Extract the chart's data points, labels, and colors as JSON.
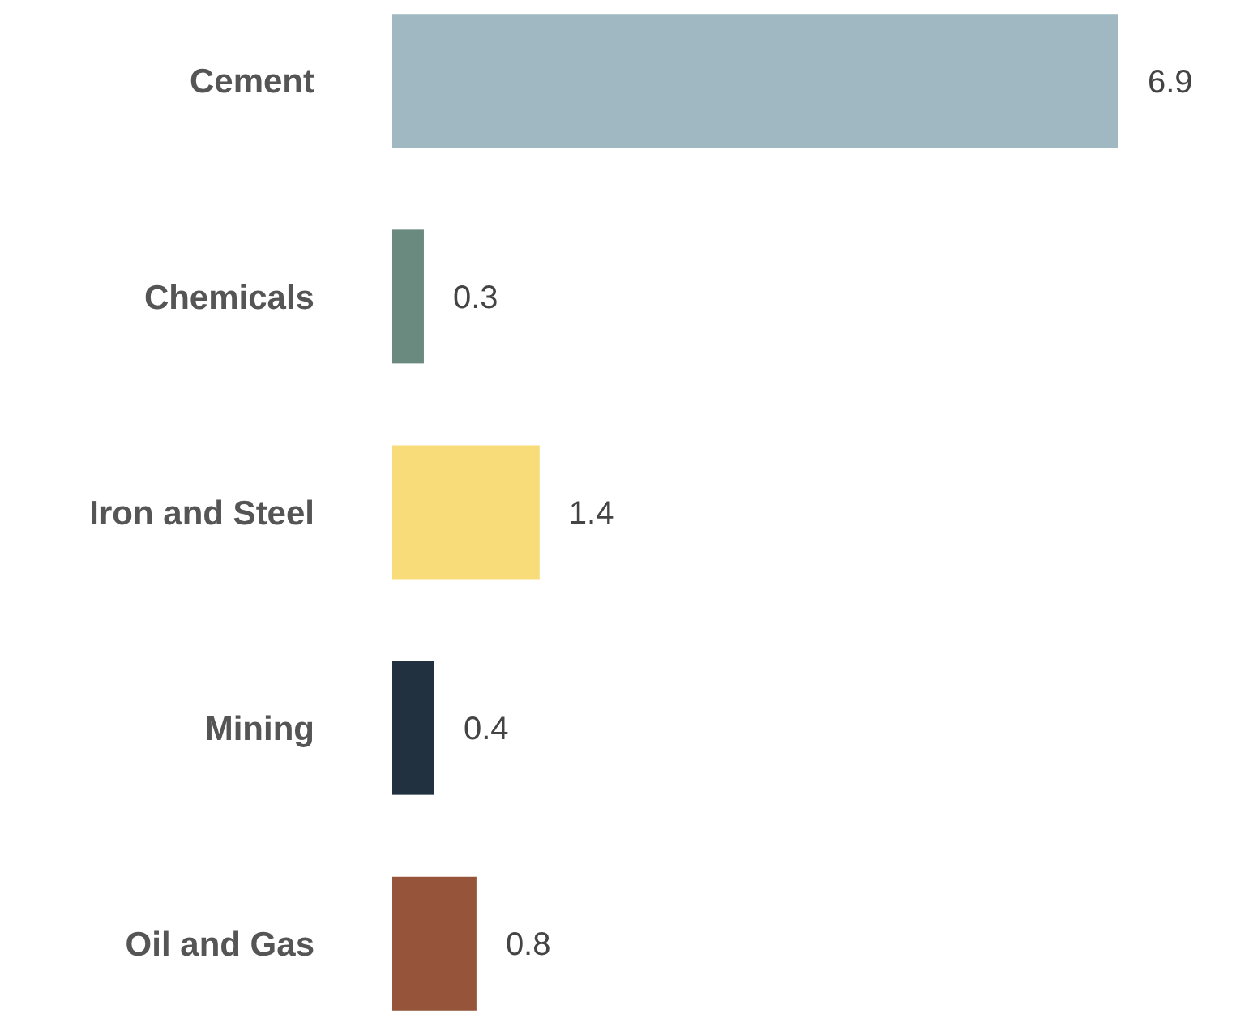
{
  "chart_data": {
    "type": "bar",
    "orientation": "horizontal",
    "categories": [
      "Cement",
      "Chemicals",
      "Iron and Steel",
      "Mining",
      "Oil and Gas"
    ],
    "values": [
      6.9,
      0.3,
      1.4,
      0.4,
      0.8
    ],
    "colors": [
      "#9fb8c2",
      "#6a8a80",
      "#f9dc7a",
      "#22313f",
      "#96553a"
    ],
    "data_labels": true
  }
}
